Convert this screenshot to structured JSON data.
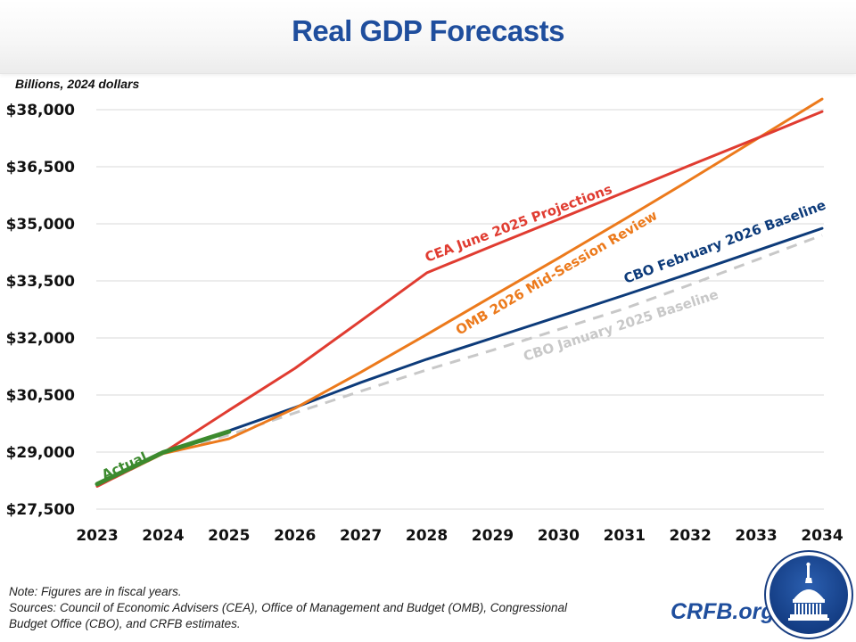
{
  "header": {
    "title": "Real GDP Forecasts"
  },
  "chart_data": {
    "type": "line",
    "title": "Real GDP Forecasts",
    "ylabel": "Billions, 2024 dollars",
    "xlabel": "",
    "x": [
      2023,
      2024,
      2025,
      2026,
      2027,
      2028,
      2029,
      2030,
      2031,
      2032,
      2033,
      2034
    ],
    "ylim": [
      27500,
      38500
    ],
    "yticks": [
      27500,
      29000,
      30500,
      32000,
      33500,
      35000,
      36500,
      38000
    ],
    "ytick_labels": [
      "$27,500",
      "$29,000",
      "$30,500",
      "$32,000",
      "$33,500",
      "$35,000",
      "$36,500",
      "$38,000"
    ],
    "xtick_labels": [
      "2023",
      "2024",
      "2025",
      "2026",
      "2027",
      "2028",
      "2029",
      "2030",
      "2031",
      "2032",
      "2033",
      "2034"
    ],
    "grid": "horizontal",
    "legend": "inline labels",
    "series": [
      {
        "name": "CBO January 2025 Baseline",
        "color": "#c8c8c8",
        "dash": true,
        "values": [
          28100,
          28960,
          29450,
          30030,
          30600,
          31160,
          31680,
          32220,
          32770,
          33400,
          34050,
          34700
        ]
      },
      {
        "name": "CBO February 2026 Baseline",
        "color": "#0d3b7a",
        "dash": false,
        "values": [
          28110,
          28980,
          29560,
          30170,
          30830,
          31440,
          32000,
          32560,
          33125,
          33700,
          34290,
          34880
        ]
      },
      {
        "name": "OMB 2026 Mid-Session Review",
        "color": "#ec7a1c",
        "dash": false,
        "values": [
          28110,
          28960,
          29350,
          30150,
          31100,
          32090,
          33100,
          34100,
          35120,
          36160,
          37220,
          38280
        ]
      },
      {
        "name": "CEA June 2025 Projections",
        "color": "#e03c31",
        "dash": false,
        "values": [
          28100,
          28980,
          30100,
          31200,
          32450,
          33710,
          34420,
          35120,
          35830,
          36540,
          37240,
          37950
        ]
      },
      {
        "name": "Actual",
        "color": "#3c8a2e",
        "dash": false,
        "values": [
          28160,
          28990,
          29540,
          null,
          null,
          null,
          null,
          null,
          null,
          null,
          null,
          null
        ]
      }
    ],
    "annotations": [
      {
        "text": "CEA June 2025 Projections",
        "color": "#e03c31"
      },
      {
        "text": "OMB 2026 Mid-Session Review",
        "color": "#ec7a1c"
      },
      {
        "text": "CBO February 2026 Baseline",
        "color": "#0d3b7a"
      },
      {
        "text": "CBO January 2025 Baseline",
        "color": "#c8c8c8"
      },
      {
        "text": "Actual",
        "color": "#3c8a2e"
      }
    ]
  },
  "footer": {
    "note": "Note: Figures are in fiscal years.",
    "sources_line1": "Sources: Council of Economic Advisers (CEA), Office of Management and Budget (OMB), Congressional",
    "sources_line2": "Budget Office (CBO), and CRFB estimates."
  },
  "brand": {
    "name": "CRFB.org",
    "logo_icon": "capitol-dome-icon",
    "color": "#1f4e9d"
  }
}
